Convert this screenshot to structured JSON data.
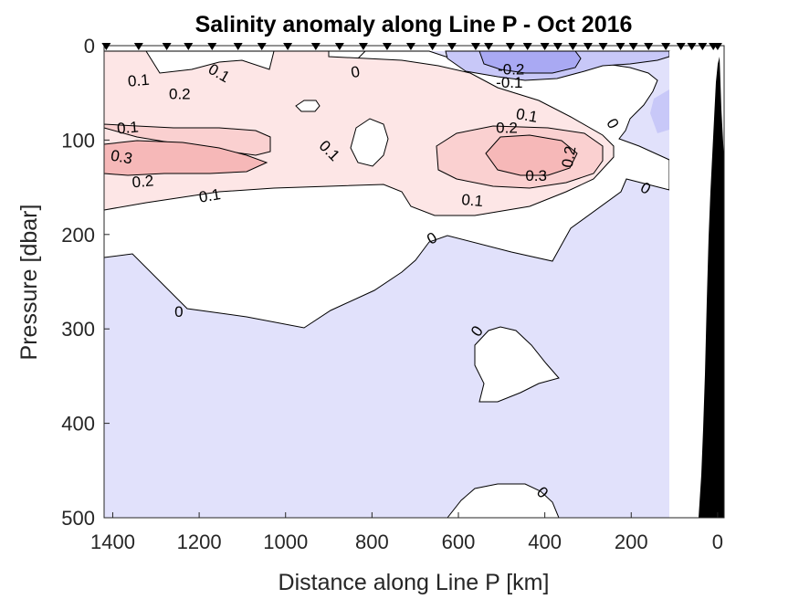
{
  "chart_data": {
    "type": "contour",
    "title": "Salinity anomaly along Line P - Oct 2016",
    "xlabel": "Distance along Line P [km]",
    "ylabel": "Pressure [dbar]",
    "xlim": [
      1420,
      -15
    ],
    "ylim": [
      0,
      500
    ],
    "x_reversed": true,
    "y_reversed": true,
    "xticks": [
      1400,
      1200,
      1000,
      800,
      600,
      400,
      200,
      0
    ],
    "yticks": [
      0,
      100,
      200,
      300,
      400,
      500
    ],
    "colors": {
      "positive_0_1": "#fde6e6",
      "positive_0_3": "#f9c2c2",
      "negative_0": "#e1e1fb",
      "negative_0_1": "#c8c8f8",
      "negative_0_2": "#a9a9f3",
      "zero_band": "#ffffff",
      "bathymetry": "#000000",
      "station_marker": "#000000"
    },
    "stations_km": [
      1415,
      1340,
      1275,
      1225,
      1170,
      1110,
      1055,
      995,
      930,
      875,
      820,
      765,
      710,
      660,
      615,
      560,
      530,
      480,
      440,
      400,
      370,
      335,
      300,
      265,
      225,
      195,
      160,
      120,
      85,
      60,
      35,
      10,
      0
    ],
    "contour_labels": [
      {
        "text": "0.1",
        "x": 1340,
        "y": 38,
        "angle": -5
      },
      {
        "text": "0.2",
        "x": 1245,
        "y": 52,
        "angle": 0
      },
      {
        "text": "0.1",
        "x": 1155,
        "y": 30,
        "angle": 30
      },
      {
        "text": "0",
        "x": 838,
        "y": 29,
        "angle": -10
      },
      {
        "text": "-0.2",
        "x": 478,
        "y": 26,
        "angle": 0
      },
      {
        "text": "-0.1",
        "x": 482,
        "y": 40,
        "angle": 0
      },
      {
        "text": "0.1",
        "x": 1365,
        "y": 88,
        "angle": -5
      },
      {
        "text": "0.1",
        "x": 442,
        "y": 75,
        "angle": 10
      },
      {
        "text": "0.2",
        "x": 488,
        "y": 88,
        "angle": 0
      },
      {
        "text": "0",
        "x": 245,
        "y": 83,
        "angle": 60
      },
      {
        "text": "0.3",
        "x": 1380,
        "y": 119,
        "angle": 10
      },
      {
        "text": "0.1",
        "x": 900,
        "y": 112,
        "angle": 45
      },
      {
        "text": "0.2",
        "x": 342,
        "y": 118,
        "angle": -80
      },
      {
        "text": "0.3",
        "x": 420,
        "y": 139,
        "angle": 0
      },
      {
        "text": "0.2",
        "x": 1330,
        "y": 145,
        "angle": -5
      },
      {
        "text": "0",
        "x": 168,
        "y": 152,
        "angle": 30
      },
      {
        "text": "0.1",
        "x": 1175,
        "y": 160,
        "angle": -10
      },
      {
        "text": "0.1",
        "x": 568,
        "y": 165,
        "angle": 5
      },
      {
        "text": "0",
        "x": 660,
        "y": 205,
        "angle": -30
      },
      {
        "text": "0",
        "x": 1247,
        "y": 283,
        "angle": 0
      },
      {
        "text": "0",
        "x": 555,
        "y": 303,
        "angle": -55
      },
      {
        "text": "0",
        "x": 407,
        "y": 474,
        "angle": 45
      }
    ]
  }
}
